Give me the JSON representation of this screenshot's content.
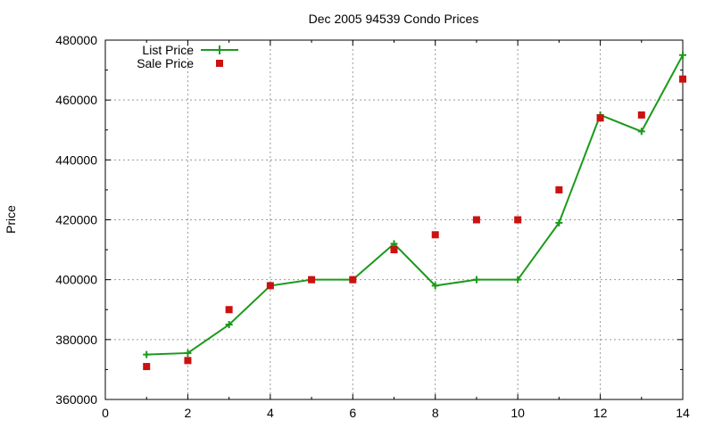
{
  "chart_data": {
    "type": "line",
    "title": "Dec 2005 94539 Condo Prices",
    "xlabel": "",
    "ylabel": "Price",
    "xlim": [
      0,
      14
    ],
    "ylim": [
      360000,
      480000
    ],
    "xticks": [
      "0",
      "2",
      "4",
      "6",
      "8",
      "10",
      "12",
      "14"
    ],
    "yticks": [
      "360000",
      "380000",
      "400000",
      "420000",
      "440000",
      "460000",
      "480000"
    ],
    "grid": true,
    "legend_position": "top-left",
    "series": [
      {
        "name": "List Price",
        "style": "line+cross",
        "color": "#1a9a1a",
        "x": [
          1,
          2,
          3,
          4,
          5,
          6,
          7,
          8,
          9,
          10,
          11,
          12,
          13,
          14
        ],
        "y": [
          375000,
          375500,
          385000,
          398000,
          400000,
          400000,
          412000,
          398000,
          400000,
          400000,
          419000,
          455000,
          449500,
          475000
        ]
      },
      {
        "name": "Sale Price",
        "style": "square",
        "color": "#cc1111",
        "x": [
          1,
          2,
          3,
          4,
          5,
          6,
          7,
          8,
          9,
          10,
          11,
          12,
          13,
          14
        ],
        "y": [
          371000,
          373000,
          390000,
          398000,
          400000,
          400000,
          410000,
          415000,
          420000,
          420000,
          430000,
          454000,
          455000,
          467000
        ]
      }
    ]
  }
}
